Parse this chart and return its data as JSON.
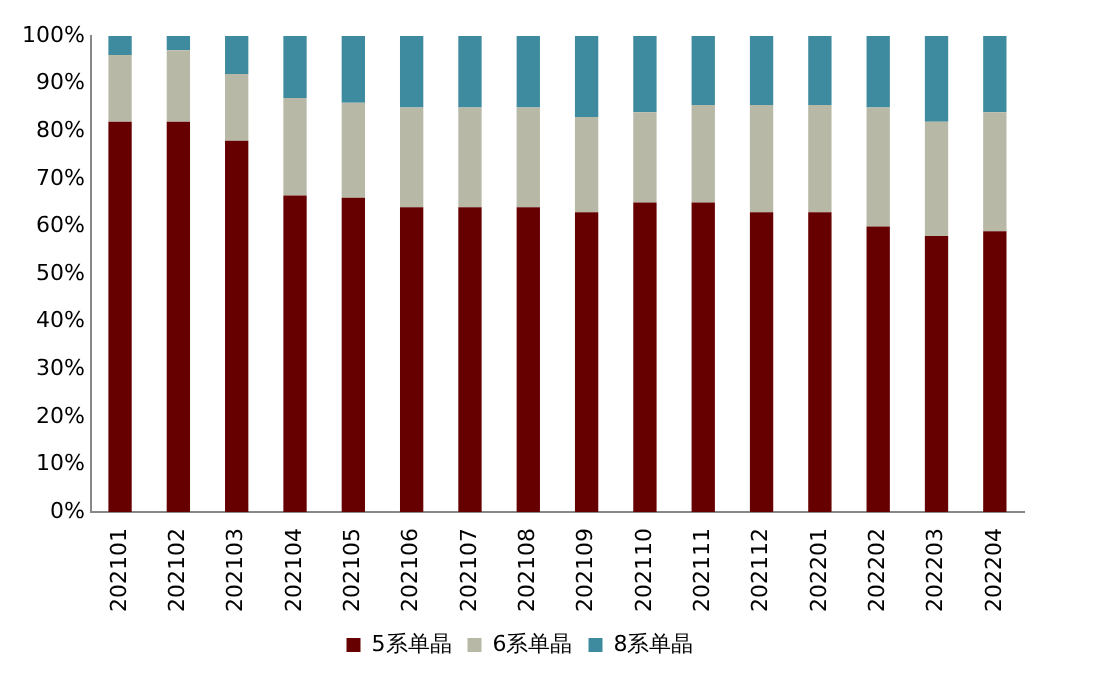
{
  "chart_data": {
    "type": "bar",
    "stacked": true,
    "categories": [
      "202101",
      "202102",
      "202103",
      "202104",
      "202105",
      "202106",
      "202107",
      "202108",
      "202109",
      "202110",
      "202111",
      "202112",
      "202201",
      "202202",
      "202203",
      "202204"
    ],
    "series": [
      {
        "name": "5系单晶",
        "color": "#660000",
        "values": [
          82,
          82,
          78,
          66.5,
          66,
          64,
          64,
          64,
          63,
          65,
          65,
          63,
          63,
          60,
          58,
          59
        ]
      },
      {
        "name": "6系单晶",
        "color": "#b8b8a6",
        "values": [
          14,
          15,
          14,
          20.5,
          20,
          21,
          21,
          21,
          20,
          19,
          20.5,
          22.5,
          22.5,
          25,
          24,
          25
        ]
      },
      {
        "name": "8系单晶",
        "color": "#3e8a9e",
        "values": [
          4,
          3,
          8,
          13,
          14,
          15,
          15,
          15,
          17,
          16,
          14.5,
          14.5,
          14.5,
          15,
          18,
          16
        ]
      }
    ],
    "ylim": [
      0,
      100
    ],
    "yticks": [
      {
        "value": 0,
        "label": "0%"
      },
      {
        "value": 10,
        "label": "10%"
      },
      {
        "value": 20,
        "label": "20%"
      },
      {
        "value": 30,
        "label": "30%"
      },
      {
        "value": 40,
        "label": "40%"
      },
      {
        "value": 50,
        "label": "50%"
      },
      {
        "value": 60,
        "label": "60%"
      },
      {
        "value": 70,
        "label": "70%"
      },
      {
        "value": 80,
        "label": "80%"
      },
      {
        "value": 90,
        "label": "90%"
      },
      {
        "value": 100,
        "label": "100%"
      }
    ],
    "grid": false,
    "legend": "bottom"
  }
}
